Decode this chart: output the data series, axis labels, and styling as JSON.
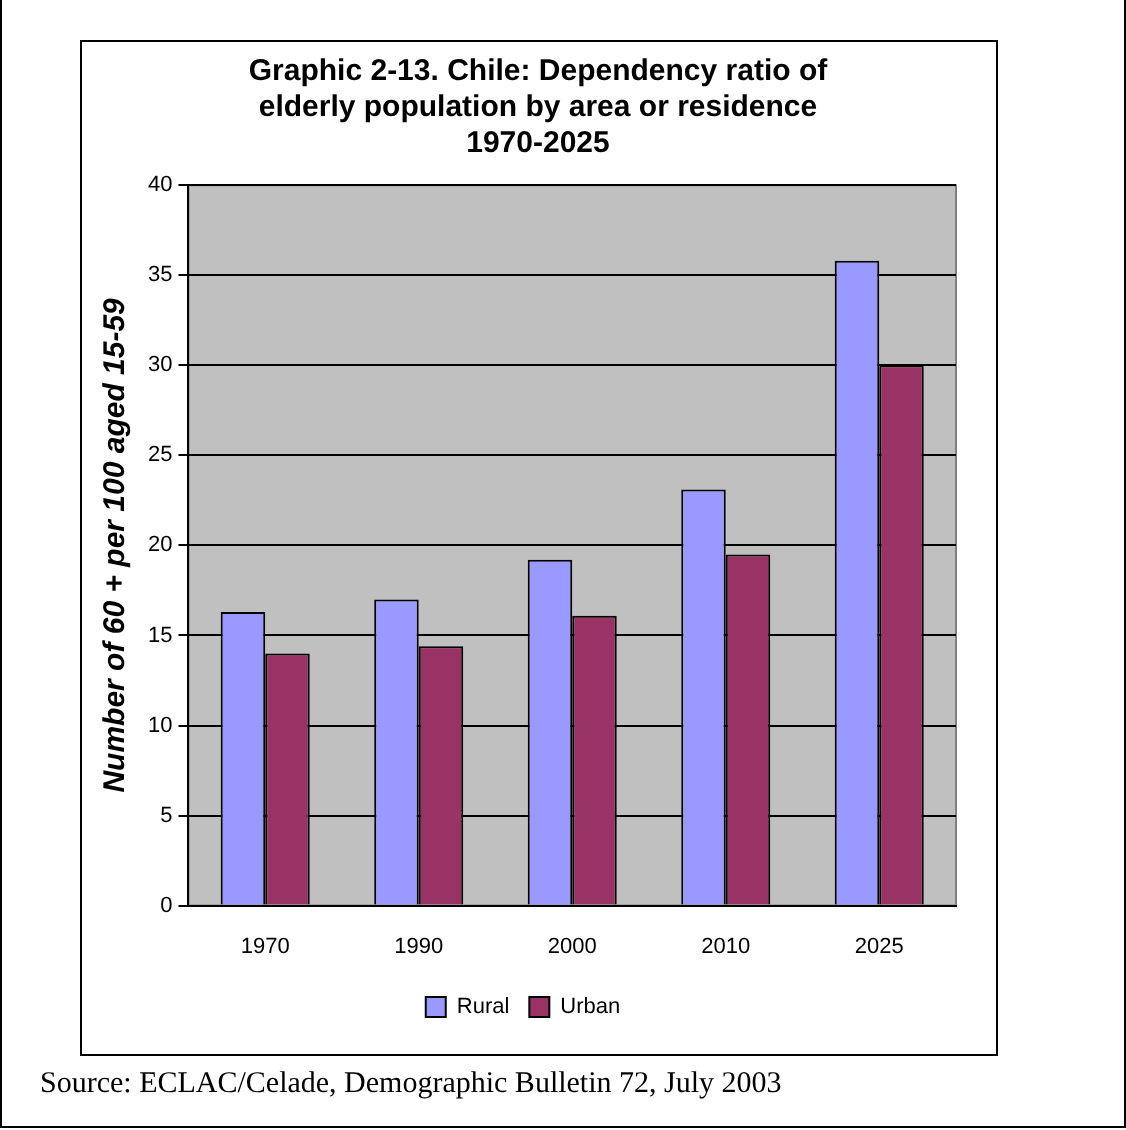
{
  "chart_data": {
    "type": "bar",
    "title": "Graphic 2-13. Chile: Dependency ratio of elderly population by area or residence 1970-2025",
    "ylabel": "Number of 60 + per 100 aged 15-59",
    "categories": [
      "1970",
      "1990",
      "2000",
      "2010",
      "2025"
    ],
    "series": [
      {
        "name": "Rural",
        "color": "#9999ff",
        "values": [
          16.3,
          17.0,
          19.2,
          23.1,
          35.8
        ]
      },
      {
        "name": "Urban",
        "color": "#993366",
        "values": [
          14.0,
          14.4,
          16.1,
          19.5,
          30.0
        ]
      }
    ],
    "ylim": [
      0,
      40
    ],
    "yticks": [
      0,
      5,
      10,
      15,
      20,
      25,
      30,
      35,
      40
    ],
    "grid": "y",
    "legend": "bottom",
    "annotations": [
      "Source: ECLAC/Celade, Demographic Bulletin 72, July 2003"
    ]
  }
}
